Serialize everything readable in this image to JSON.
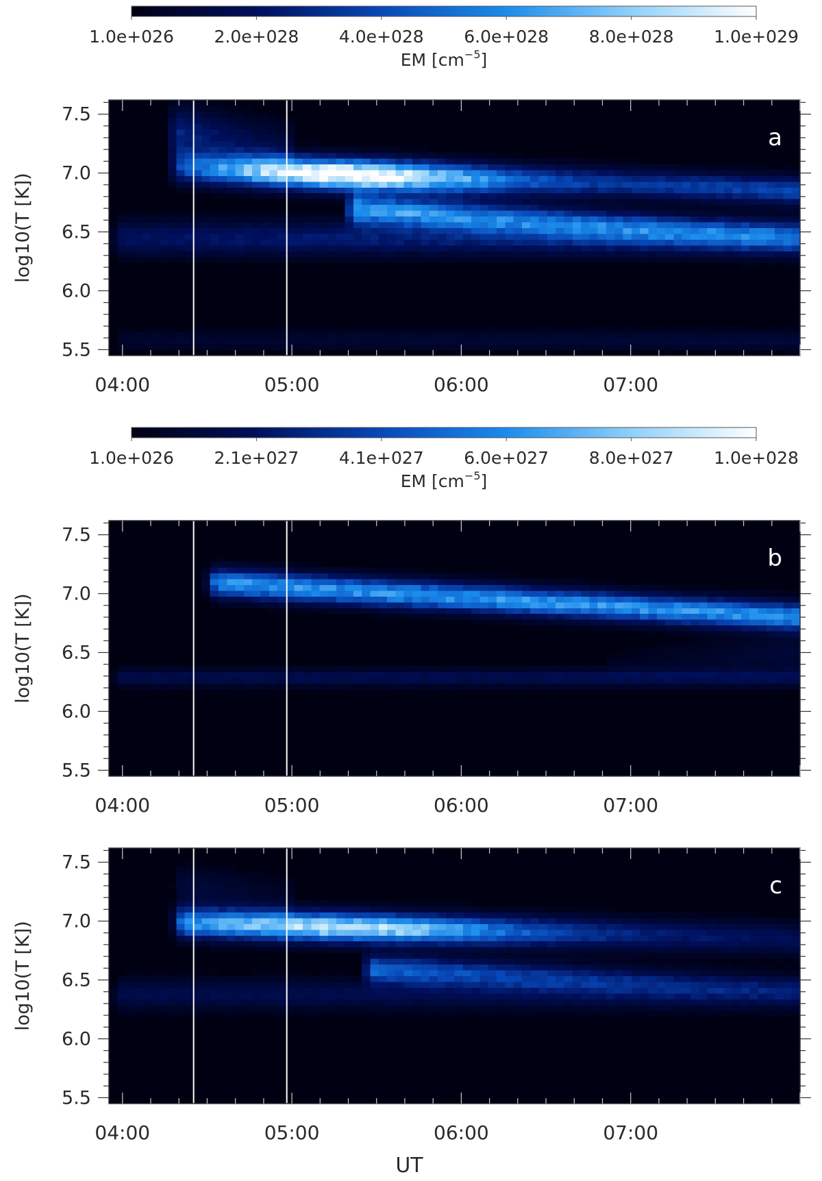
{
  "chart_data": [
    {
      "type": "heatmap",
      "panel_label": "a",
      "ylabel": "log10(T [K])",
      "ylim": [
        5.45,
        7.62
      ],
      "y_ticks": [
        5.5,
        6.0,
        6.5,
        7.0,
        7.5
      ],
      "y_tick_labels": [
        "5.5",
        "6.0",
        "6.5",
        "7.0",
        "7.5"
      ],
      "xlim_hours": [
        3.92,
        8.0
      ],
      "x_ticks_hours": [
        4,
        5,
        6,
        7
      ],
      "x_tick_labels": [
        "04:00",
        "05:00",
        "06:00",
        "07:00"
      ],
      "xlabel": "",
      "vertical_markers_hours": [
        4.42,
        4.97
      ],
      "colorbar": {
        "label": "EM [cm⁻⁵]",
        "label_base": "EM [cm",
        "label_sup": "−5",
        "label_end": "]",
        "ticks": [
          "1.0e+026",
          "2.0e+028",
          "4.0e+028",
          "6.0e+028",
          "8.0e+028",
          "1.0e+029"
        ],
        "min": 1e+26,
        "max": 1e+29,
        "colors": [
          "#000013",
          "#000f5c",
          "#0848b8",
          "#1b8cec",
          "#8fd0fa",
          "#ffffff"
        ]
      },
      "emission_components": [
        {
          "t0": 4.3,
          "t1": 8.0,
          "Tstart": 7.08,
          "Tend": 6.85,
          "width": 0.08,
          "amp": 0.1,
          "amp_end": 0.42,
          "decay": 0.3
        },
        {
          "t0": 4.25,
          "t1": 8.0,
          "Tstart": 7.05,
          "Tend": 6.82,
          "width": 0.09,
          "amp": 0.9,
          "amp_end": 0.0,
          "decay": 0.9,
          "peak_time": 5.3
        },
        {
          "t0": 5.3,
          "t1": 8.0,
          "Tstart": 6.7,
          "Tend": 6.45,
          "width": 0.08,
          "amp": 0.7,
          "amp_end": 0.35,
          "decay": 1.2
        },
        {
          "t0": 3.92,
          "t1": 8.0,
          "Tstart": 6.45,
          "Tend": 6.45,
          "width": 0.1,
          "amp": 0.2,
          "amp_end": 0.3,
          "decay": 0.0
        },
        {
          "t0": 3.92,
          "t1": 8.0,
          "Tstart": 5.58,
          "Tend": 5.58,
          "width": 0.06,
          "amp": 0.07,
          "amp_end": 0.1,
          "decay": 0.0
        },
        {
          "t0": 4.25,
          "t1": 5.0,
          "Tstart": 7.35,
          "Tend": 7.2,
          "width": 0.15,
          "amp": 0.3,
          "amp_end": 0.1,
          "decay": 0.5
        }
      ]
    },
    {
      "type": "heatmap",
      "panel_label": "b",
      "ylabel": "log10(T [K])",
      "ylim": [
        5.45,
        7.62
      ],
      "y_ticks": [
        5.5,
        6.0,
        6.5,
        7.0,
        7.5
      ],
      "y_tick_labels": [
        "5.5",
        "6.0",
        "6.5",
        "7.0",
        "7.5"
      ],
      "xlim_hours": [
        3.92,
        8.0
      ],
      "x_ticks_hours": [
        4,
        5,
        6,
        7
      ],
      "x_tick_labels": [
        "04:00",
        "05:00",
        "06:00",
        "07:00"
      ],
      "xlabel": "",
      "vertical_markers_hours": [
        4.42,
        4.97
      ],
      "colorbar": {
        "label": "EM [cm⁻⁵]",
        "label_base": "EM [cm",
        "label_sup": "−5",
        "label_end": "]",
        "ticks": [
          "1.0e+026",
          "2.1e+027",
          "4.1e+027",
          "6.0e+027",
          "8.0e+027",
          "1.0e+028"
        ],
        "min": 1e+26,
        "max": 1e+28,
        "colors": [
          "#000013",
          "#000f5c",
          "#0848b8",
          "#1b8cec",
          "#8fd0fa",
          "#ffffff"
        ]
      },
      "emission_components": [
        {
          "t0": 4.48,
          "t1": 8.0,
          "Tstart": 7.1,
          "Tend": 6.8,
          "width": 0.08,
          "amp": 0.62,
          "amp_end": 0.62,
          "decay": 0.0
        },
        {
          "t0": 3.92,
          "t1": 8.0,
          "Tstart": 6.29,
          "Tend": 6.29,
          "width": 0.05,
          "amp": 0.15,
          "amp_end": 0.18,
          "decay": 0.0
        },
        {
          "t0": 6.8,
          "t1": 8.0,
          "Tstart": 6.4,
          "Tend": 6.5,
          "width": 0.1,
          "amp": 0.02,
          "amp_end": 0.1,
          "decay": 0.0
        }
      ]
    },
    {
      "type": "heatmap",
      "panel_label": "c",
      "ylabel": "log10(T [K])",
      "ylim": [
        5.45,
        7.62
      ],
      "y_ticks": [
        5.5,
        6.0,
        6.5,
        7.0,
        7.5
      ],
      "y_tick_labels": [
        "5.5",
        "6.0",
        "6.5",
        "7.0",
        "7.5"
      ],
      "xlim_hours": [
        3.92,
        8.0
      ],
      "x_ticks_hours": [
        4,
        5,
        6,
        7
      ],
      "x_tick_labels": [
        "04:00",
        "05:00",
        "06:00",
        "07:00"
      ],
      "xlabel": "UT",
      "vertical_markers_hours": [
        4.42,
        4.97
      ],
      "colorbar_ref": 0,
      "emission_components": [
        {
          "t0": 4.28,
          "t1": 8.0,
          "Tstart": 7.0,
          "Tend": 6.85,
          "width": 0.09,
          "amp": 0.4,
          "amp_end": 0.2,
          "decay": 0.4
        },
        {
          "t0": 4.28,
          "t1": 8.0,
          "Tstart": 6.98,
          "Tend": 6.85,
          "width": 0.08,
          "amp": 0.55,
          "amp_end": 0.0,
          "decay": 1.0,
          "peak_time": 5.35
        },
        {
          "t0": 5.4,
          "t1": 8.0,
          "Tstart": 6.6,
          "Tend": 6.42,
          "width": 0.08,
          "amp": 0.5,
          "amp_end": 0.15,
          "decay": 1.3
        },
        {
          "t0": 3.92,
          "t1": 8.0,
          "Tstart": 6.38,
          "Tend": 6.38,
          "width": 0.09,
          "amp": 0.15,
          "amp_end": 0.15,
          "decay": 0.0
        },
        {
          "t0": 4.28,
          "t1": 5.0,
          "Tstart": 7.3,
          "Tend": 7.2,
          "width": 0.12,
          "amp": 0.12,
          "amp_end": 0.05,
          "decay": 0.5
        }
      ]
    }
  ]
}
